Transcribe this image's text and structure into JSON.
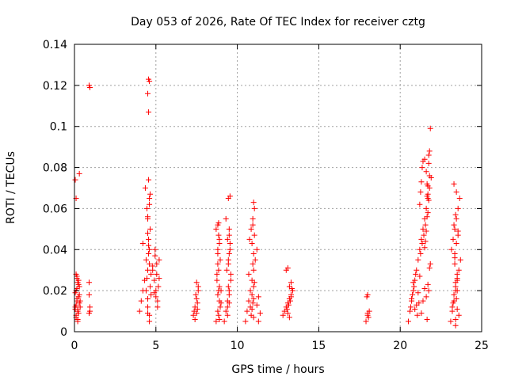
{
  "chart_data": {
    "type": "scatter",
    "title": "Day 053 of 2026, Rate Of TEC Index for receiver cztg",
    "xlabel": "GPS time / hours",
    "ylabel": "ROTI / TECUs",
    "xlim": [
      0,
      25
    ],
    "ylim": [
      0,
      0.14
    ],
    "xticks": [
      0,
      5,
      10,
      15,
      20,
      25
    ],
    "xtick_labels": [
      "0",
      "5",
      "10",
      "15",
      "20",
      "25"
    ],
    "yticks": [
      0,
      0.02,
      0.04,
      0.06,
      0.08,
      0.1,
      0.12,
      0.14
    ],
    "ytick_labels": [
      "0",
      "0.02",
      "0.04",
      "0.06",
      "0.08",
      "0.1",
      "0.12",
      "0.14"
    ],
    "grid": true,
    "marker": "+",
    "color": "#ff0000",
    "series": [
      {
        "name": "ROTI",
        "x": [
          0.05,
          0.1,
          0.15,
          0.2,
          0.1,
          0.25,
          0.3,
          0.15,
          0.2,
          0.05,
          0.1,
          0.3,
          0.25,
          0.15,
          0.2,
          0.1,
          0.05,
          0.3,
          0.35,
          0.2,
          0.15,
          0.25,
          0.1,
          0.05,
          0.3,
          0.2,
          0.15,
          0.25,
          0.35,
          0.1,
          0.9,
          0.95,
          0.9,
          0.95,
          0.9,
          0.95,
          0.9,
          4.0,
          4.1,
          4.2,
          4.3,
          4.5,
          4.6,
          4.4,
          4.55,
          4.65,
          4.5,
          4.45,
          4.6,
          4.35,
          4.55,
          4.7,
          4.8,
          4.5,
          4.6,
          4.4,
          4.7,
          4.2,
          4.55,
          4.6,
          4.5,
          4.65,
          4.45,
          4.55,
          4.5,
          4.6,
          4.55,
          4.5,
          4.6,
          4.65,
          4.5,
          4.55,
          4.5,
          4.6,
          4.8,
          4.9,
          5.0,
          5.1,
          5.2,
          4.95,
          5.05,
          5.15,
          5.0,
          5.1,
          4.9,
          5.2,
          5.05,
          4.95,
          7.3,
          7.4,
          7.5,
          7.6,
          7.5,
          7.35,
          7.55,
          7.45,
          7.6,
          7.4,
          7.5,
          7.55,
          8.7,
          8.8,
          8.9,
          9.0,
          8.75,
          8.85,
          8.95,
          8.8,
          8.9,
          8.7,
          8.85,
          8.95,
          8.8,
          8.9,
          8.75,
          8.85,
          9.0,
          8.8,
          8.9,
          8.85,
          8.8,
          8.9,
          8.85,
          8.8,
          9.2,
          9.3,
          9.4,
          9.5,
          9.6,
          9.35,
          9.45,
          9.55,
          9.4,
          9.5,
          9.3,
          9.45,
          9.55,
          9.4,
          9.5,
          9.45,
          9.6,
          9.4,
          9.5,
          9.45,
          9.5,
          9.55,
          9.5,
          10.5,
          10.6,
          10.7,
          10.8,
          10.9,
          11.0,
          11.1,
          11.2,
          10.75,
          10.85,
          10.95,
          11.05,
          10.8,
          10.9,
          11.0,
          10.7,
          10.85,
          10.95,
          11.0,
          10.9,
          11.05,
          10.95,
          11.0,
          10.95,
          11.05,
          11.0,
          10.9,
          11.0,
          11.3,
          11.4,
          11.2,
          11.3,
          12.8,
          12.9,
          13.0,
          13.1,
          13.2,
          13.3,
          13.4,
          13.0,
          13.1,
          13.2,
          13.3,
          13.05,
          13.15,
          13.25,
          13.1,
          13.2,
          13.3,
          13.35,
          17.9,
          18.0,
          18.1,
          18.0,
          17.95,
          18.05,
          18.0,
          20.5,
          20.6,
          20.7,
          20.8,
          20.9,
          21.0,
          21.1,
          21.2,
          21.3,
          21.4,
          21.5,
          21.6,
          21.7,
          21.8,
          21.9,
          20.65,
          20.75,
          20.85,
          20.95,
          21.05,
          21.15,
          21.25,
          21.35,
          21.45,
          21.55,
          21.65,
          21.75,
          21.85,
          20.7,
          20.8,
          20.9,
          21.0,
          21.1,
          21.2,
          21.3,
          21.4,
          21.5,
          21.6,
          21.7,
          21.8,
          21.2,
          21.25,
          21.3,
          21.35,
          21.4,
          21.5,
          21.6,
          21.65,
          21.7,
          21.75,
          21.8,
          21.85,
          21.5,
          21.55,
          21.6,
          21.65,
          21.7,
          21.75,
          21.8,
          21.75,
          21.7,
          21.65,
          23.1,
          23.2,
          23.3,
          23.4,
          23.5,
          23.6,
          23.7,
          23.15,
          23.25,
          23.35,
          23.45,
          23.55,
          23.65,
          23.2,
          23.3,
          23.4,
          23.5,
          23.6,
          23.25,
          23.35,
          23.45,
          23.55,
          23.3,
          23.4,
          23.5,
          23.35,
          23.45,
          23.4,
          23.5,
          23.3,
          23.45,
          23.4,
          23.55,
          23.35,
          23.5,
          23.4
        ],
        "y": [
          0.012,
          0.008,
          0.015,
          0.01,
          0.02,
          0.025,
          0.018,
          0.027,
          0.005,
          0.011,
          0.013,
          0.022,
          0.009,
          0.016,
          0.024,
          0.007,
          0.019,
          0.014,
          0.012,
          0.006,
          0.021,
          0.017,
          0.065,
          0.074,
          0.077,
          0.011,
          0.026,
          0.023,
          0.015,
          0.028,
          0.12,
          0.119,
          0.024,
          0.01,
          0.009,
          0.012,
          0.018,
          0.01,
          0.015,
          0.02,
          0.025,
          0.03,
          0.04,
          0.035,
          0.045,
          0.05,
          0.055,
          0.06,
          0.065,
          0.07,
          0.074,
          0.028,
          0.032,
          0.012,
          0.008,
          0.02,
          0.018,
          0.043,
          0.038,
          0.033,
          0.016,
          0.022,
          0.026,
          0.107,
          0.116,
          0.122,
          0.123,
          0.056,
          0.062,
          0.067,
          0.048,
          0.042,
          0.009,
          0.005,
          0.03,
          0.025,
          0.02,
          0.015,
          0.035,
          0.04,
          0.028,
          0.022,
          0.017,
          0.012,
          0.019,
          0.026,
          0.033,
          0.037,
          0.008,
          0.012,
          0.016,
          0.02,
          0.024,
          0.01,
          0.014,
          0.018,
          0.022,
          0.006,
          0.009,
          0.011,
          0.005,
          0.01,
          0.015,
          0.02,
          0.025,
          0.03,
          0.035,
          0.04,
          0.045,
          0.05,
          0.053,
          0.012,
          0.018,
          0.022,
          0.028,
          0.008,
          0.014,
          0.038,
          0.043,
          0.047,
          0.052,
          0.006,
          0.02,
          0.033,
          0.005,
          0.01,
          0.015,
          0.02,
          0.025,
          0.03,
          0.035,
          0.04,
          0.045,
          0.05,
          0.055,
          0.065,
          0.066,
          0.012,
          0.018,
          0.022,
          0.028,
          0.008,
          0.014,
          0.033,
          0.038,
          0.043,
          0.047,
          0.005,
          0.01,
          0.015,
          0.02,
          0.025,
          0.03,
          0.035,
          0.04,
          0.045,
          0.05,
          0.055,
          0.06,
          0.012,
          0.018,
          0.022,
          0.028,
          0.008,
          0.014,
          0.038,
          0.043,
          0.047,
          0.052,
          0.063,
          0.033,
          0.024,
          0.016,
          0.011,
          0.007,
          0.005,
          0.009,
          0.013,
          0.017,
          0.008,
          0.01,
          0.012,
          0.014,
          0.016,
          0.018,
          0.02,
          0.03,
          0.031,
          0.022,
          0.024,
          0.011,
          0.013,
          0.015,
          0.009,
          0.007,
          0.017,
          0.021,
          0.005,
          0.008,
          0.01,
          0.018,
          0.017,
          0.007,
          0.009,
          0.005,
          0.01,
          0.015,
          0.02,
          0.025,
          0.03,
          0.035,
          0.04,
          0.045,
          0.05,
          0.055,
          0.06,
          0.065,
          0.07,
          0.075,
          0.012,
          0.018,
          0.022,
          0.028,
          0.008,
          0.014,
          0.038,
          0.043,
          0.047,
          0.052,
          0.006,
          0.02,
          0.033,
          0.016,
          0.024,
          0.011,
          0.013,
          0.019,
          0.027,
          0.009,
          0.015,
          0.021,
          0.017,
          0.023,
          0.031,
          0.062,
          0.068,
          0.073,
          0.08,
          0.083,
          0.084,
          0.078,
          0.072,
          0.067,
          0.086,
          0.088,
          0.099,
          0.041,
          0.044,
          0.049,
          0.056,
          0.058,
          0.064,
          0.076,
          0.082,
          0.071,
          0.066,
          0.005,
          0.01,
          0.015,
          0.02,
          0.025,
          0.03,
          0.035,
          0.04,
          0.045,
          0.05,
          0.055,
          0.06,
          0.065,
          0.012,
          0.018,
          0.022,
          0.028,
          0.008,
          0.014,
          0.038,
          0.043,
          0.047,
          0.052,
          0.006,
          0.02,
          0.033,
          0.016,
          0.024,
          0.011,
          0.072,
          0.068,
          0.057,
          0.049,
          0.036,
          0.026,
          0.003
        ]
      }
    ]
  }
}
